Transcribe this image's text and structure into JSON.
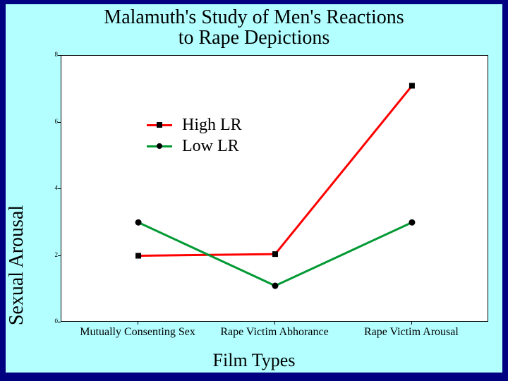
{
  "title_line1": "Malamuth's Study of Men's Reactions",
  "title_line2": "to Rape Depictions",
  "y_axis_label": "Sexual Arousal",
  "x_axis_label": "Film Types",
  "chart": {
    "type": "line",
    "background_color": "#ffffff",
    "panel_color": "#b3ffff",
    "outer_color": "#000080",
    "ylim": [
      0,
      8
    ],
    "yticks": [
      0,
      2,
      4,
      6,
      8
    ],
    "ytick_fontsize": 9,
    "categories": [
      "Mutually Consenting Sex",
      "Rape Victim Abhorance",
      "Rape Victim Arousal"
    ],
    "xcat_fontsize": 16,
    "series": [
      {
        "name": "High LR",
        "color": "#ff0000",
        "marker": "square",
        "marker_color": "#000000",
        "line_width": 3,
        "values": [
          2.0,
          2.05,
          7.1
        ]
      },
      {
        "name": "Low LR",
        "color": "#009933",
        "marker": "circle",
        "marker_color": "#000000",
        "line_width": 3,
        "values": [
          3.0,
          1.1,
          3.0
        ]
      }
    ],
    "legend": {
      "fontsize": 24,
      "items": [
        "High LR",
        "Low LR"
      ]
    },
    "title_fontsize": 28,
    "axis_label_fontsize": 28
  }
}
